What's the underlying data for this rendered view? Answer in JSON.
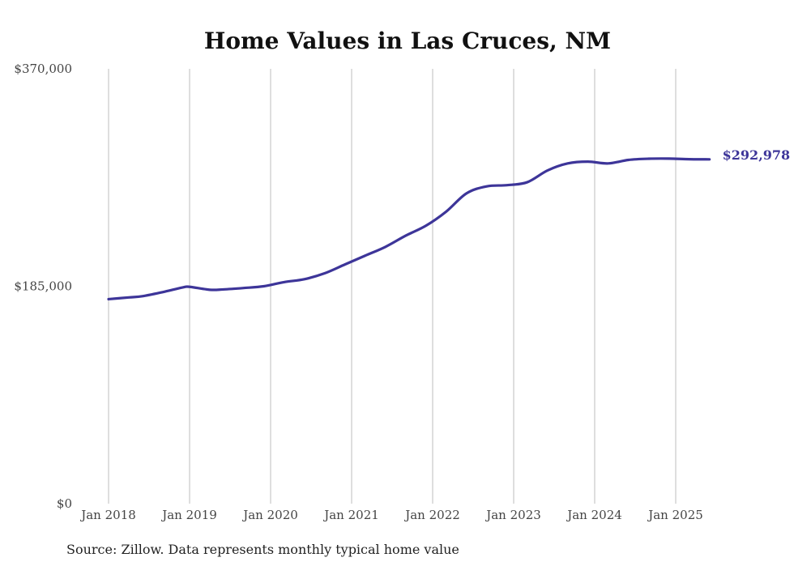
{
  "chart_data": {
    "type": "line",
    "title": "Home Values in Las Cruces, NM",
    "xlabel": "",
    "ylabel": "",
    "ylim": [
      0,
      370000
    ],
    "y_ticks": [
      {
        "value": 0,
        "label": "$0"
      },
      {
        "value": 185000,
        "label": "$185,000"
      },
      {
        "value": 370000,
        "label": "$370,000"
      }
    ],
    "x_ticks": [
      {
        "value": "2018-01",
        "label": "Jan 2018"
      },
      {
        "value": "2019-01",
        "label": "Jan 2019"
      },
      {
        "value": "2020-01",
        "label": "Jan 2020"
      },
      {
        "value": "2021-01",
        "label": "Jan 2021"
      },
      {
        "value": "2022-01",
        "label": "Jan 2022"
      },
      {
        "value": "2023-01",
        "label": "Jan 2023"
      },
      {
        "value": "2024-01",
        "label": "Jan 2024"
      },
      {
        "value": "2025-01",
        "label": "Jan 2025"
      }
    ],
    "grid": "vertical",
    "series": [
      {
        "color": "#3d3599",
        "end_label": "$292,978",
        "x": [
          "2018-01",
          "2018-04",
          "2018-06",
          "2018-09",
          "2018-12",
          "2019-01",
          "2019-04",
          "2019-06",
          "2019-09",
          "2019-12",
          "2020-03",
          "2020-06",
          "2020-09",
          "2020-12",
          "2021-03",
          "2021-06",
          "2021-09",
          "2021-12",
          "2022-03",
          "2022-06",
          "2022-09",
          "2022-12",
          "2023-03",
          "2023-06",
          "2023-09",
          "2023-12",
          "2024-03",
          "2024-06",
          "2024-09",
          "2024-12",
          "2025-03",
          "2025-06"
        ],
        "values": [
          174000,
          175500,
          176500,
          180000,
          184000,
          184500,
          182000,
          182300,
          183500,
          185000,
          188500,
          191000,
          196000,
          203500,
          211000,
          218500,
          228000,
          236500,
          248500,
          264000,
          270000,
          271000,
          273500,
          283500,
          289500,
          291000,
          289500,
          292500,
          293500,
          293600,
          293100,
          292978
        ]
      }
    ]
  },
  "footer": {
    "source_note": "Source: Zillow. Data represents monthly typical home value"
  }
}
